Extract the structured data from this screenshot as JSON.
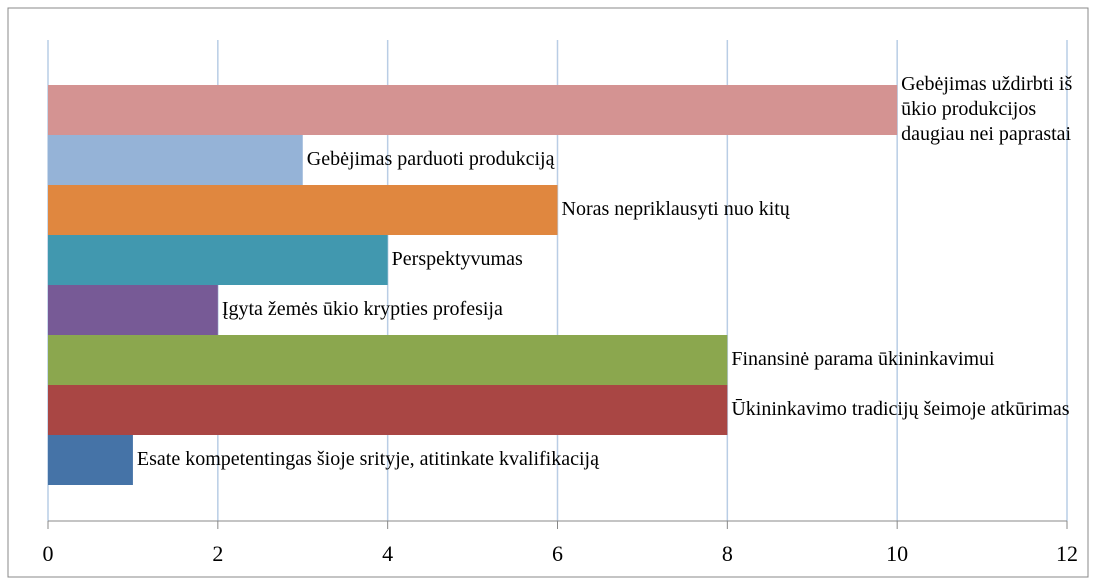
{
  "chart_data": {
    "type": "barh",
    "categories": [
      "Esate kompetentingas šioje srityje, atitinkate kvalifikaciją",
      "Ūkininkavimo tradicijų šeimoje atkūrimas",
      "Finansinė parama ūkininkavimui",
      "Įgyta žemės ūkio krypties profesija",
      "Perspektyvumas",
      "Noras nepriklausyti nuo kitų",
      "Gebėjimas parduoti produkciją",
      "Gebėjimas uždirbti iš ūkio produkcijos daugiau nei paprastai"
    ],
    "values": [
      1,
      8,
      8,
      2,
      4,
      6,
      3,
      10
    ],
    "colors": [
      "#4573a7",
      "#a94644",
      "#8ba74e",
      "#775a96",
      "#4198af",
      "#e0873f",
      "#95b3d7",
      "#d49392"
    ],
    "xlim": [
      0,
      12
    ],
    "xticks": [
      0,
      2,
      4,
      6,
      8,
      10,
      12
    ],
    "grid": true
  }
}
